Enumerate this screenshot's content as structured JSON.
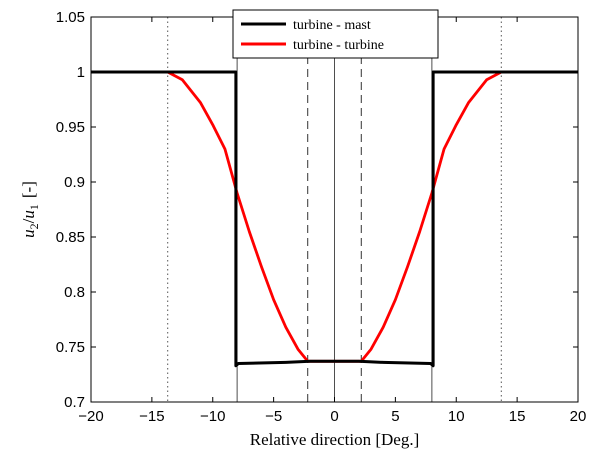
{
  "chart_data": {
    "type": "line",
    "xlabel": "Relative direction [Deg.]",
    "ylabel": "u_2/u_1 [-]",
    "ylabel_parts": {
      "num": "u",
      "num_sub": "2",
      "slash": "/",
      "den": "u",
      "den_sub": "1",
      "unit": "[-]"
    },
    "xlim": [
      -20,
      20
    ],
    "ylim": [
      0.7,
      1.05
    ],
    "xticks": [
      -20,
      -15,
      -10,
      -5,
      0,
      5,
      10,
      15,
      20
    ],
    "yticks": [
      0.7,
      0.75,
      0.8,
      0.85,
      0.9,
      0.95,
      1,
      1.05
    ],
    "xtick_labels": [
      "−20",
      "−15",
      "−10",
      "−5",
      "0",
      "5",
      "10",
      "15",
      "20"
    ],
    "ytick_labels": [
      "0.7",
      "0.75",
      "0.8",
      "0.85",
      "0.9",
      "0.95",
      "1",
      "1.05"
    ],
    "grid": false,
    "legend_position": "top-center",
    "series": [
      {
        "name": "turbine - mast",
        "color": "#000000",
        "x": [
          -20,
          -8.1,
          -8.1,
          -7.9,
          -4,
          -2,
          0,
          2,
          4,
          7.9,
          8.1,
          8.1,
          20
        ],
        "y": [
          1.0,
          1.0,
          0.733,
          0.735,
          0.736,
          0.737,
          0.737,
          0.737,
          0.736,
          0.735,
          0.733,
          1.0,
          1.0
        ]
      },
      {
        "name": "turbine - turbine",
        "color": "#ff0000",
        "x": [
          -20,
          -13.7,
          -12.5,
          -11,
          -10,
          -9,
          -8,
          -7,
          -6,
          -5,
          -4,
          -3,
          -2.2,
          2.2,
          3,
          4,
          5,
          6,
          7,
          8,
          9,
          10,
          11,
          12.5,
          13.7,
          20
        ],
        "y": [
          1.0,
          1.0,
          0.993,
          0.972,
          0.952,
          0.93,
          0.89,
          0.855,
          0.823,
          0.793,
          0.768,
          0.748,
          0.737,
          0.737,
          0.748,
          0.768,
          0.793,
          0.823,
          0.855,
          0.89,
          0.93,
          0.952,
          0.972,
          0.993,
          1.0,
          1.0
        ]
      }
    ],
    "reference_lines": [
      {
        "x": -13.7,
        "style": "dotted"
      },
      {
        "x": 13.7,
        "style": "dotted"
      },
      {
        "x": -8,
        "style": "solid"
      },
      {
        "x": 8,
        "style": "solid"
      },
      {
        "x": 0,
        "style": "solid"
      },
      {
        "x": -2.2,
        "style": "dashed"
      },
      {
        "x": 2.2,
        "style": "dashed"
      }
    ]
  }
}
